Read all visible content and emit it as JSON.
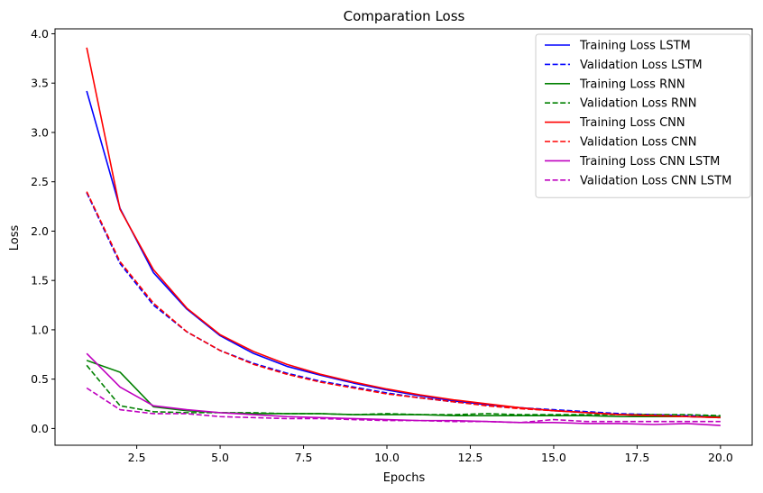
{
  "chart_data": {
    "type": "line",
    "title": "Comparation Loss",
    "xlabel": "Epochs",
    "ylabel": "Loss",
    "xlim": [
      0.05,
      20.95
    ],
    "ylim": [
      -0.17,
      4.05
    ],
    "xticks": [
      2.5,
      5.0,
      7.5,
      10.0,
      12.5,
      15.0,
      17.5,
      20.0
    ],
    "xtick_labels": [
      "2.5",
      "5.0",
      "7.5",
      "10.0",
      "12.5",
      "15.0",
      "17.5",
      "20.0"
    ],
    "yticks": [
      0.0,
      0.5,
      1.0,
      1.5,
      2.0,
      2.5,
      3.0,
      3.5,
      4.0
    ],
    "ytick_labels": [
      "0.0",
      "0.5",
      "1.0",
      "1.5",
      "2.0",
      "2.5",
      "3.0",
      "3.5",
      "4.0"
    ],
    "grid": false,
    "legend_position": "upper-right",
    "x": [
      1,
      2,
      3,
      4,
      5,
      6,
      7,
      8,
      9,
      10,
      11,
      12,
      13,
      14,
      15,
      16,
      17,
      18,
      19,
      20
    ],
    "series": [
      {
        "name": "Training Loss LSTM",
        "color": "#0000ff",
        "dash": "solid",
        "values": [
          3.42,
          2.23,
          1.58,
          1.21,
          0.94,
          0.76,
          0.63,
          0.54,
          0.46,
          0.39,
          0.33,
          0.28,
          0.24,
          0.21,
          0.18,
          0.16,
          0.14,
          0.13,
          0.12,
          0.11
        ]
      },
      {
        "name": "Validation Loss LSTM",
        "color": "#0000ff",
        "dash": "dashed",
        "values": [
          2.39,
          1.67,
          1.25,
          0.98,
          0.79,
          0.66,
          0.56,
          0.48,
          0.42,
          0.36,
          0.31,
          0.27,
          0.24,
          0.21,
          0.19,
          0.17,
          0.15,
          0.14,
          0.13,
          0.12
        ]
      },
      {
        "name": "Training Loss RNN",
        "color": "#008000",
        "dash": "solid",
        "values": [
          0.69,
          0.57,
          0.22,
          0.18,
          0.16,
          0.15,
          0.15,
          0.15,
          0.14,
          0.14,
          0.14,
          0.13,
          0.13,
          0.13,
          0.13,
          0.13,
          0.12,
          0.12,
          0.12,
          0.12
        ]
      },
      {
        "name": "Validation Loss RNN",
        "color": "#008000",
        "dash": "dashed",
        "values": [
          0.64,
          0.23,
          0.17,
          0.16,
          0.16,
          0.16,
          0.15,
          0.15,
          0.14,
          0.15,
          0.14,
          0.14,
          0.15,
          0.14,
          0.14,
          0.14,
          0.14,
          0.14,
          0.14,
          0.13
        ]
      },
      {
        "name": "Training Loss CNN",
        "color": "#ff0000",
        "dash": "solid",
        "values": [
          3.86,
          2.22,
          1.61,
          1.22,
          0.95,
          0.78,
          0.65,
          0.55,
          0.47,
          0.4,
          0.34,
          0.29,
          0.25,
          0.21,
          0.18,
          0.16,
          0.14,
          0.13,
          0.12,
          0.11
        ]
      },
      {
        "name": "Validation Loss CNN",
        "color": "#ff0000",
        "dash": "dashed",
        "values": [
          2.4,
          1.69,
          1.27,
          0.98,
          0.79,
          0.65,
          0.55,
          0.47,
          0.41,
          0.35,
          0.31,
          0.27,
          0.23,
          0.2,
          0.18,
          0.16,
          0.14,
          0.13,
          0.12,
          0.11
        ]
      },
      {
        "name": "Training Loss CNN LSTM",
        "color": "#bf00bf",
        "dash": "solid",
        "values": [
          0.76,
          0.42,
          0.23,
          0.19,
          0.16,
          0.14,
          0.12,
          0.11,
          0.1,
          0.09,
          0.08,
          0.08,
          0.07,
          0.06,
          0.06,
          0.05,
          0.05,
          0.04,
          0.05,
          0.03
        ]
      },
      {
        "name": "Validation Loss CNN LSTM",
        "color": "#bf00bf",
        "dash": "dashed",
        "values": [
          0.41,
          0.19,
          0.15,
          0.15,
          0.12,
          0.11,
          0.1,
          0.1,
          0.09,
          0.08,
          0.08,
          0.07,
          0.07,
          0.06,
          0.09,
          0.07,
          0.07,
          0.07,
          0.07,
          0.07
        ]
      }
    ]
  }
}
